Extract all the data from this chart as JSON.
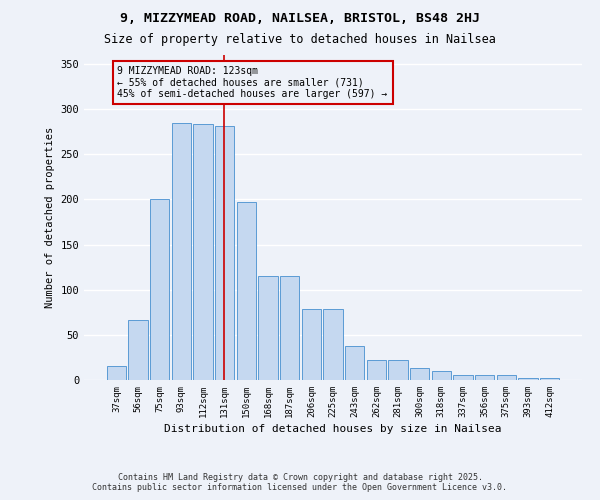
{
  "title": "9, MIZZYMEAD ROAD, NAILSEA, BRISTOL, BS48 2HJ",
  "subtitle": "Size of property relative to detached houses in Nailsea",
  "xlabel": "Distribution of detached houses by size in Nailsea",
  "ylabel": "Number of detached properties",
  "categories": [
    "37sqm",
    "56sqm",
    "75sqm",
    "93sqm",
    "112sqm",
    "131sqm",
    "150sqm",
    "168sqm",
    "187sqm",
    "206sqm",
    "225sqm",
    "243sqm",
    "262sqm",
    "281sqm",
    "300sqm",
    "318sqm",
    "337sqm",
    "356sqm",
    "375sqm",
    "393sqm",
    "412sqm"
  ],
  "values": [
    16,
    67,
    200,
    285,
    284,
    281,
    197,
    115,
    115,
    79,
    79,
    38,
    22,
    22,
    13,
    10,
    5,
    6,
    6,
    2,
    2
  ],
  "bar_color": "#c5d8f0",
  "bar_edge_color": "#5b9bd5",
  "property_label": "9 MIZZYMEAD ROAD: 123sqm",
  "annotation_line1": "← 55% of detached houses are smaller (731)",
  "annotation_line2": "45% of semi-detached houses are larger (597) →",
  "vline_color": "#cc0000",
  "annotation_box_color": "#cc0000",
  "ylim": [
    0,
    360
  ],
  "yticks": [
    0,
    50,
    100,
    150,
    200,
    250,
    300,
    350
  ],
  "background_color": "#eef2f9",
  "grid_color": "#ffffff",
  "footer": "Contains HM Land Registry data © Crown copyright and database right 2025.\nContains public sector information licensed under the Open Government Licence v3.0."
}
